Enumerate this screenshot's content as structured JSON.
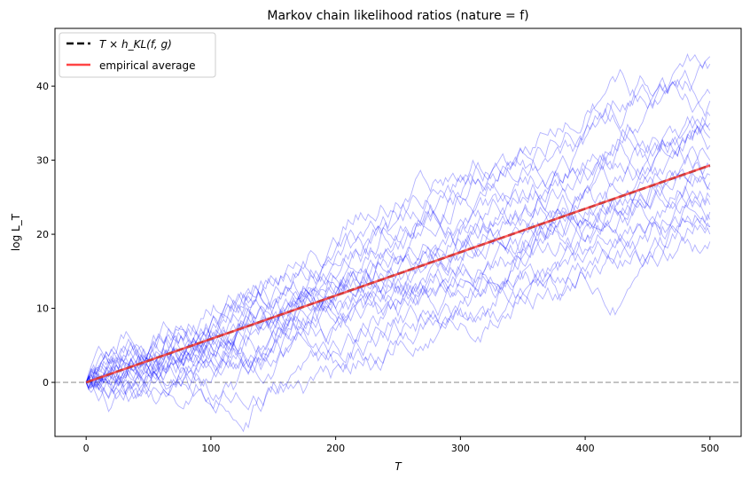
{
  "chart_data": {
    "type": "line",
    "title": "Markov chain likelihood ratios (nature = f)",
    "xlabel": "T",
    "ylabel": "log L_T",
    "xlim": [
      -25,
      525
    ],
    "ylim": [
      -7.3,
      47.8
    ],
    "xticks": [
      0,
      100,
      200,
      300,
      400,
      500
    ],
    "yticks": [
      0,
      10,
      20,
      30,
      40
    ],
    "grid": false,
    "legend_placement": "top-left",
    "reference_line": {
      "y": 0,
      "style": "dashed",
      "color": "#aaaaaa"
    },
    "theory_line": {
      "name": "T × h_KL(f, g)",
      "slope": 0.0586,
      "color": "#000000",
      "style": "dashed"
    },
    "empirical_average": {
      "name": "empirical average",
      "x": [
        0,
        500
      ],
      "y": [
        0,
        29.3
      ],
      "color": "#ff4444"
    },
    "paths_color": "#0000ff",
    "paths_sample_x": [
      0,
      50,
      100,
      150,
      200,
      250,
      300,
      350,
      400,
      450,
      500
    ],
    "paths": [
      [
        0,
        4,
        8,
        12,
        17,
        22,
        27,
        31,
        36,
        40,
        44
      ],
      [
        0,
        3,
        7,
        11,
        16,
        20,
        24,
        29,
        34,
        39,
        43
      ],
      [
        0,
        2,
        5,
        9,
        14,
        19,
        25,
        30,
        33,
        37,
        39
      ],
      [
        0,
        3,
        6,
        9,
        13,
        17,
        21,
        25,
        29,
        32,
        35
      ],
      [
        0,
        3,
        5,
        8,
        12,
        15,
        18,
        22,
        26,
        30,
        34
      ],
      [
        0,
        2,
        4,
        7,
        10,
        13,
        16,
        20,
        23,
        27,
        30
      ],
      [
        0,
        4,
        7,
        10,
        13,
        16,
        19,
        23,
        26,
        28,
        29
      ],
      [
        0,
        1,
        3,
        6,
        8,
        11,
        14,
        18,
        21,
        24,
        27
      ],
      [
        0,
        2,
        3,
        5,
        8,
        11,
        13,
        16,
        19,
        22,
        25
      ],
      [
        0,
        3,
        6,
        8,
        11,
        13,
        15,
        17,
        19,
        21,
        22
      ],
      [
        0,
        1,
        2,
        4,
        7,
        9,
        12,
        14,
        17,
        19,
        21
      ],
      [
        0,
        -1,
        0,
        3,
        5,
        7,
        10,
        12,
        15,
        17,
        20
      ],
      [
        0,
        -2,
        -3,
        0,
        3,
        6,
        9,
        12,
        14,
        17,
        19
      ],
      [
        0,
        -1,
        -3,
        -1,
        2,
        5,
        8,
        11,
        14,
        16,
        21
      ],
      [
        0,
        2,
        6,
        10,
        14,
        18,
        22,
        26,
        28,
        30,
        32
      ],
      [
        0,
        4,
        8,
        13,
        18,
        22,
        25,
        27,
        29,
        31,
        36
      ],
      [
        0,
        1,
        4,
        7,
        10,
        14,
        17,
        19,
        22,
        24,
        26
      ],
      [
        0,
        3,
        6,
        9,
        12,
        16,
        20,
        23,
        26,
        29,
        33
      ],
      [
        0,
        2,
        5,
        8,
        12,
        15,
        18,
        20,
        22,
        24,
        24
      ],
      [
        0,
        1,
        3,
        5,
        9,
        12,
        15,
        18,
        22,
        25,
        28
      ],
      [
        0,
        0,
        -2,
        1,
        4,
        8,
        11,
        15,
        18,
        21,
        23
      ],
      [
        0,
        4,
        9,
        14,
        19,
        24,
        28,
        31,
        34,
        37,
        38
      ]
    ]
  }
}
